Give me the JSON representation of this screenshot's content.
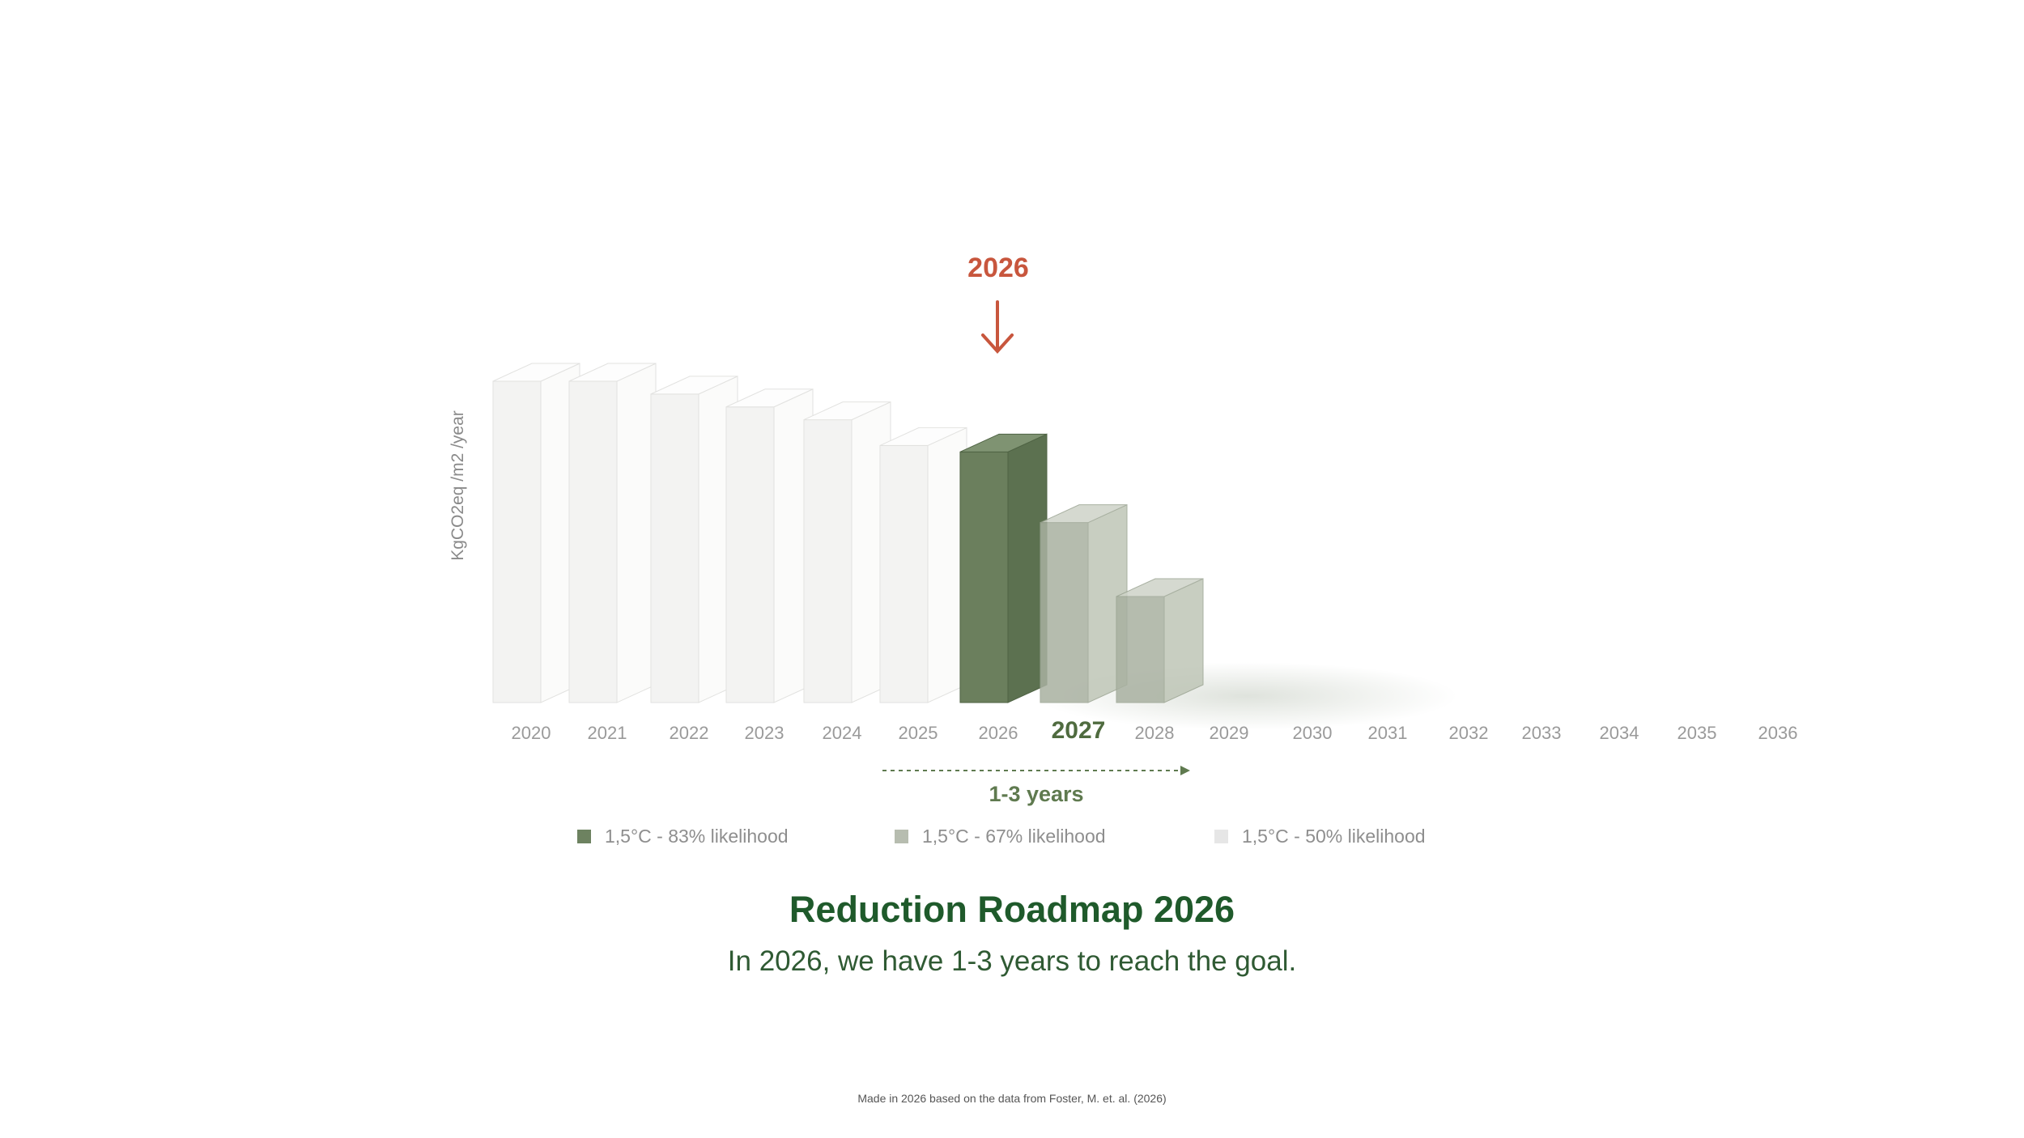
{
  "chart_data": {
    "type": "bar",
    "ylabel": "KgCO2eq /m2 /year",
    "categories": [
      "2020",
      "2021",
      "2022",
      "2023",
      "2024",
      "2025",
      "2026",
      "2027",
      "2028",
      "2029",
      "2030",
      "2031",
      "2032",
      "2033",
      "2034",
      "2035",
      "2036"
    ],
    "highlighted_category": "2027",
    "series": [
      {
        "name": "1,5°C - 83% likelihood",
        "color": "#6d8260",
        "values": [
          null,
          null,
          null,
          null,
          null,
          null,
          78,
          null,
          null,
          null,
          null,
          null,
          null,
          null,
          null,
          null,
          null
        ]
      },
      {
        "name": "1,5°C - 67% likelihood",
        "color": "#b7bdb0",
        "values": [
          null,
          null,
          null,
          null,
          null,
          null,
          null,
          56,
          33,
          null,
          null,
          null,
          null,
          null,
          null,
          null,
          null
        ]
      },
      {
        "name": "1,5°C - 50% likelihood",
        "color": "#e6e6e6",
        "values": [
          100,
          100,
          96,
          92,
          88,
          80,
          null,
          null,
          null,
          null,
          null,
          null,
          null,
          null,
          null,
          null,
          null
        ]
      }
    ],
    "annotations": {
      "marker": {
        "label": "2026",
        "category": "2026"
      },
      "range": {
        "label": "1-3 years",
        "from": "2025",
        "to": "2028"
      }
    }
  },
  "legend": [
    {
      "label": "1,5°C - 83% likelihood",
      "color": "#6d8260"
    },
    {
      "label": "1,5°C - 67% likelihood",
      "color": "#b7bdb0"
    },
    {
      "label": "1,5°C - 50% likelihood",
      "color": "#e6e6e6"
    }
  ],
  "title": "Reduction Roadmap 2026",
  "subtitle": "In 2026, we have 1-3 years to reach the goal.",
  "footnote": "Made in 2026 based on the data from Foster, M. et. al. (2026)"
}
